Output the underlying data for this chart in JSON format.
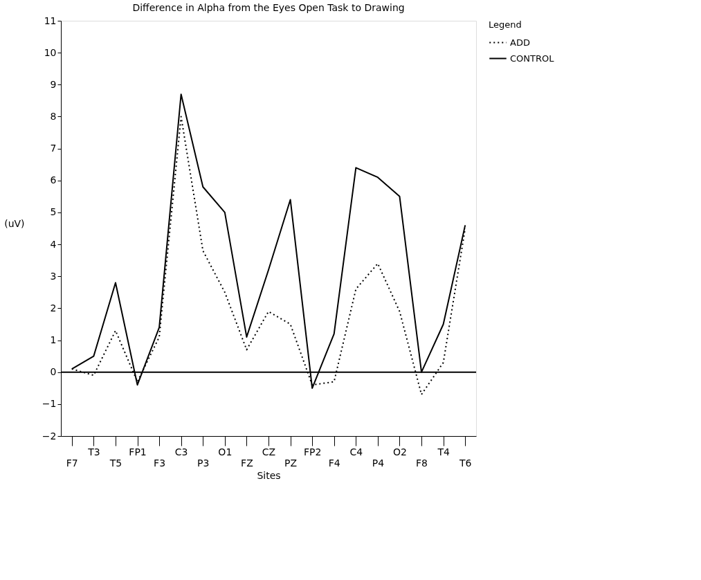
{
  "chart_data": {
    "type": "line",
    "title": "Difference in Alpha from the Eyes Open Task to Drawing",
    "xlabel": "Sites",
    "ylabel": "(uV)",
    "legend_title": "Legend",
    "categories": [
      "F7",
      "T3",
      "T5",
      "FP1",
      "F3",
      "C3",
      "P3",
      "O1",
      "FZ",
      "CZ",
      "PZ",
      "FP2",
      "F4",
      "C4",
      "P4",
      "O2",
      "F8",
      "T4",
      "T6"
    ],
    "series": [
      {
        "name": "ADD",
        "color": "#000000",
        "line_style": "dotted",
        "values": [
          0.1,
          -0.1,
          1.3,
          -0.3,
          1.1,
          8.0,
          3.8,
          2.5,
          0.7,
          1.9,
          1.5,
          -0.4,
          -0.3,
          2.6,
          3.4,
          1.9,
          -0.7,
          0.3,
          4.5
        ]
      },
      {
        "name": "CONTROL",
        "color": "#000000",
        "line_style": "solid",
        "values": [
          0.1,
          0.5,
          2.8,
          -0.4,
          1.4,
          8.7,
          5.8,
          5.0,
          1.1,
          3.2,
          5.4,
          -0.5,
          1.2,
          6.4,
          6.1,
          5.5,
          0.0,
          1.5,
          4.6
        ]
      }
    ],
    "ylim": [
      -2,
      11
    ],
    "yticks": [
      -2,
      -1,
      0,
      1,
      2,
      3,
      4,
      5,
      6,
      7,
      8,
      9,
      10,
      11
    ],
    "ref_lines": [
      {
        "axis": "y",
        "value": 0,
        "color": "#000000"
      }
    ],
    "grid": false,
    "legend": "right",
    "marker": "none"
  }
}
